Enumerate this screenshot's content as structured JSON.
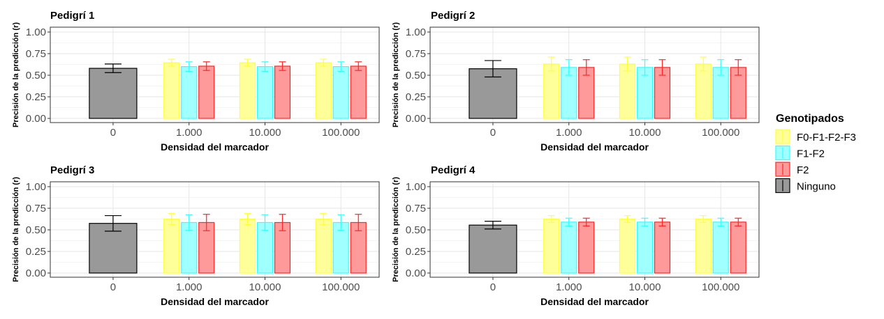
{
  "figure": {
    "legend": {
      "title": "Genotipados",
      "position": "right",
      "entries": [
        {
          "label": "F0-F1-F2-F3",
          "fill": "#ffff9a",
          "stroke": "#ffff3a"
        },
        {
          "label": "F1-F2",
          "fill": "#a0ffff",
          "stroke": "#33ffff"
        },
        {
          "label": "F2",
          "fill": "#ff9a9a",
          "stroke": "#ff2626"
        },
        {
          "label": "Ninguno",
          "fill": "#999999",
          "stroke": "#000000"
        }
      ]
    }
  },
  "chart_data": [
    {
      "type": "bar",
      "title": "Pedigrí 1",
      "xlabel": "Densidad del marcador",
      "ylabel": "Precisión de la predicción (r)",
      "ylim": [
        0,
        1
      ],
      "yticks": [
        "0.00",
        "0.25",
        "0.50",
        "0.75",
        "1.00"
      ],
      "grid": true,
      "categories": [
        "0",
        "1.000",
        "10.000",
        "100.000"
      ],
      "series": [
        {
          "name": "Ninguno",
          "values": [
            0.58,
            null,
            null,
            null
          ],
          "err": [
            0.05,
            null,
            null,
            null
          ]
        },
        {
          "name": "F0-F1-F2-F3",
          "values": [
            null,
            0.645,
            0.645,
            0.645
          ],
          "err": [
            null,
            0.04,
            0.04,
            0.04
          ]
        },
        {
          "name": "F1-F2",
          "values": [
            null,
            0.6,
            0.6,
            0.6
          ],
          "err": [
            null,
            0.055,
            0.055,
            0.055
          ]
        },
        {
          "name": "F2",
          "values": [
            null,
            0.605,
            0.605,
            0.605
          ],
          "err": [
            null,
            0.05,
            0.05,
            0.05
          ]
        }
      ]
    },
    {
      "type": "bar",
      "title": "Pedigrí 2",
      "xlabel": "Densidad del marcador",
      "ylabel": "Precisión de la predicción (r)",
      "ylim": [
        0,
        1
      ],
      "yticks": [
        "0.00",
        "0.25",
        "0.50",
        "0.75",
        "1.00"
      ],
      "grid": true,
      "categories": [
        "0",
        "1.000",
        "10.000",
        "100.000"
      ],
      "series": [
        {
          "name": "Ninguno",
          "values": [
            0.575,
            null,
            null,
            null
          ],
          "err": [
            0.095,
            null,
            null,
            null
          ]
        },
        {
          "name": "F0-F1-F2-F3",
          "values": [
            null,
            0.63,
            0.63,
            0.63
          ],
          "err": [
            null,
            0.08,
            0.08,
            0.08
          ]
        },
        {
          "name": "F1-F2",
          "values": [
            null,
            0.59,
            0.59,
            0.59
          ],
          "err": [
            null,
            0.09,
            0.09,
            0.09
          ]
        },
        {
          "name": "F2",
          "values": [
            null,
            0.59,
            0.59,
            0.59
          ],
          "err": [
            null,
            0.09,
            0.09,
            0.09
          ]
        }
      ]
    },
    {
      "type": "bar",
      "title": "Pedigrí 3",
      "xlabel": "Densidad del marcador",
      "ylabel": "Precisión de la predicción (r)",
      "ylim": [
        0,
        1
      ],
      "yticks": [
        "0.00",
        "0.25",
        "0.50",
        "0.75",
        "1.00"
      ],
      "grid": true,
      "categories": [
        "0",
        "1.000",
        "10.000",
        "100.000"
      ],
      "series": [
        {
          "name": "Ninguno",
          "values": [
            0.575,
            null,
            null,
            null
          ],
          "err": [
            0.09,
            null,
            null,
            null
          ]
        },
        {
          "name": "F0-F1-F2-F3",
          "values": [
            null,
            0.625,
            0.625,
            0.625
          ],
          "err": [
            null,
            0.065,
            0.065,
            0.065
          ]
        },
        {
          "name": "F1-F2",
          "values": [
            null,
            0.585,
            0.585,
            0.585
          ],
          "err": [
            null,
            0.09,
            0.09,
            0.09
          ]
        },
        {
          "name": "F2",
          "values": [
            null,
            0.585,
            0.585,
            0.585
          ],
          "err": [
            null,
            0.095,
            0.095,
            0.095
          ]
        }
      ]
    },
    {
      "type": "bar",
      "title": "Pedigrí 4",
      "xlabel": "Densidad del marcador",
      "ylabel": "Precisión de la predicción (r)",
      "ylim": [
        0,
        1
      ],
      "yticks": [
        "0.00",
        "0.25",
        "0.50",
        "0.75",
        "1.00"
      ],
      "grid": true,
      "categories": [
        "0",
        "1.000",
        "10.000",
        "100.000"
      ],
      "series": [
        {
          "name": "Ninguno",
          "values": [
            0.555,
            null,
            null,
            null
          ],
          "err": [
            0.045,
            null,
            null,
            null
          ]
        },
        {
          "name": "F0-F1-F2-F3",
          "values": [
            null,
            0.625,
            0.625,
            0.625
          ],
          "err": [
            null,
            0.04,
            0.04,
            0.04
          ]
        },
        {
          "name": "F1-F2",
          "values": [
            null,
            0.59,
            0.59,
            0.59
          ],
          "err": [
            null,
            0.045,
            0.045,
            0.045
          ]
        },
        {
          "name": "F2",
          "values": [
            null,
            0.59,
            0.59,
            0.59
          ],
          "err": [
            null,
            0.045,
            0.045,
            0.045
          ]
        }
      ]
    }
  ]
}
